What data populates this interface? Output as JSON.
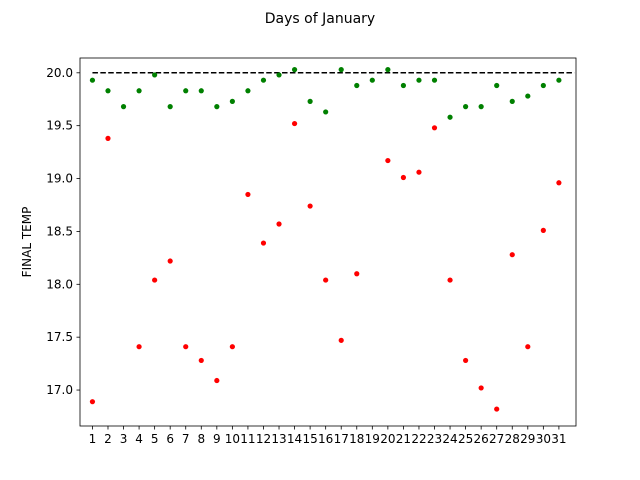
{
  "chart_data": {
    "type": "scatter",
    "title": "Days of January",
    "xlabel": "",
    "ylabel": "FINAL TEMP",
    "x": [
      1,
      2,
      3,
      4,
      5,
      6,
      7,
      8,
      9,
      10,
      11,
      12,
      13,
      14,
      15,
      16,
      17,
      18,
      19,
      20,
      21,
      22,
      23,
      24,
      25,
      26,
      27,
      28,
      29,
      30,
      31
    ],
    "xlim": [
      0.2,
      32.1
    ],
    "ylim": [
      16.66,
      20.14
    ],
    "yticks": [
      17.0,
      17.5,
      18.0,
      18.5,
      19.0,
      19.5,
      20.0
    ],
    "ytick_labels": [
      "17.0",
      "17.5",
      "18.0",
      "18.5",
      "19.0",
      "19.5",
      "20.0"
    ],
    "xtick_labels": [
      "1",
      "2",
      "3",
      "4",
      "5",
      "6",
      "7",
      "8",
      "9",
      "10",
      "11",
      "12",
      "13",
      "14",
      "15",
      "16",
      "17",
      "18",
      "19",
      "20",
      "21",
      "22",
      "23",
      "24",
      "25",
      "26",
      "27",
      "28",
      "29",
      "30",
      "31"
    ],
    "grid": false,
    "series": [
      {
        "color": "#008000",
        "values": [
          19.93,
          19.83,
          19.68,
          19.83,
          19.98,
          19.68,
          19.83,
          19.83,
          19.68,
          19.73,
          19.83,
          19.93,
          19.98,
          20.03,
          19.73,
          19.63,
          20.03,
          19.88,
          19.93,
          20.03,
          19.88,
          19.93,
          19.93,
          19.58,
          19.68,
          19.68,
          19.88,
          19.73,
          19.78,
          19.88,
          19.93
        ]
      },
      {
        "color": "#ff0000",
        "values": [
          16.89,
          19.38,
          null,
          17.41,
          18.04,
          18.22,
          17.41,
          17.28,
          17.09,
          17.41,
          18.85,
          18.39,
          18.57,
          19.52,
          18.74,
          18.04,
          17.47,
          18.1,
          null,
          19.17,
          19.01,
          19.06,
          19.48,
          18.04,
          17.28,
          17.02,
          16.82,
          18.28,
          17.41,
          18.51,
          18.96
        ]
      }
    ],
    "reference_line": {
      "y": 20.0,
      "x_range": [
        1,
        32
      ],
      "style": "dashed",
      "color": "#000000"
    }
  }
}
